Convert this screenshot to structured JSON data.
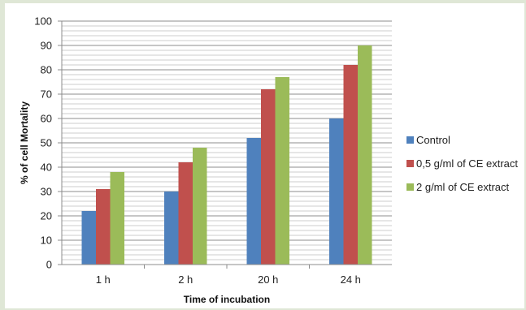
{
  "chart_data": {
    "type": "bar",
    "categories": [
      "1 h",
      "2 h",
      "20 h",
      "24 h"
    ],
    "series": [
      {
        "name": "Control",
        "values": [
          22,
          30,
          52,
          60
        ],
        "color": "#4f81bd"
      },
      {
        "name": "0,5 g/ml of CE extract",
        "values": [
          31,
          42,
          72,
          82
        ],
        "color": "#c0504d"
      },
      {
        "name": "2 g/ml of CE extract",
        "values": [
          38,
          48,
          77,
          90
        ],
        "color": "#9bbb59"
      }
    ],
    "title": "",
    "xlabel": "Time of incubation",
    "ylabel": "% of cell Mortality",
    "ylim": [
      0,
      100
    ],
    "yticks": [
      0,
      10,
      20,
      30,
      40,
      50,
      60,
      70,
      80,
      90,
      100
    ],
    "grid": true,
    "legend_position": "right"
  }
}
